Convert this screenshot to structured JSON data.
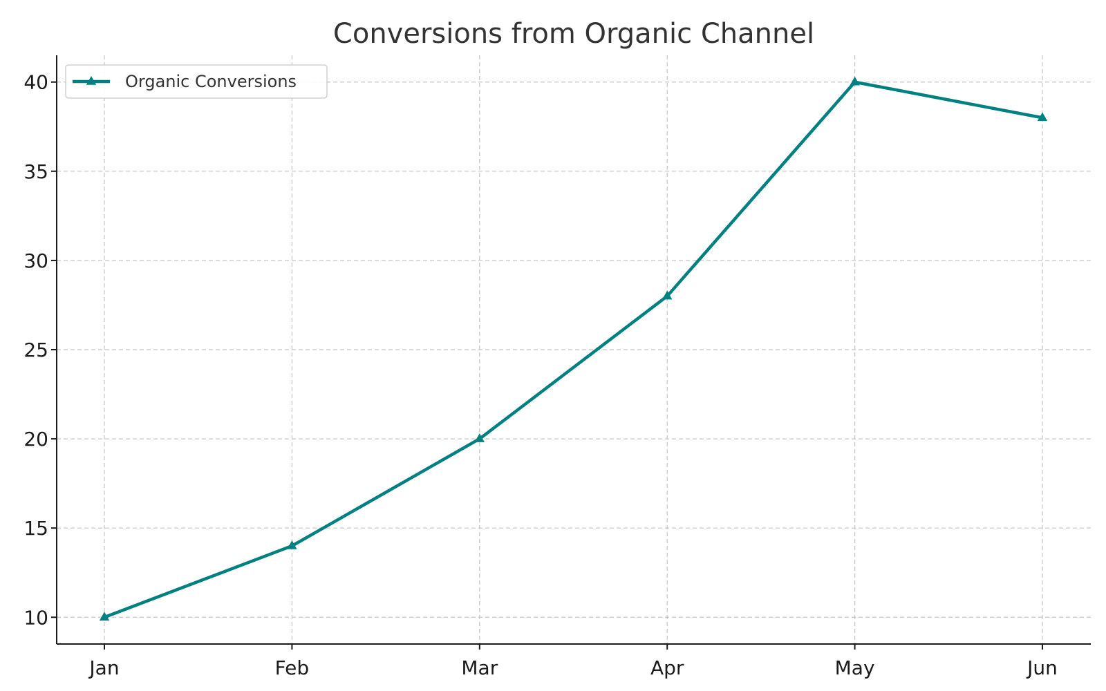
{
  "chart_data": {
    "type": "line",
    "title": "Conversions from Organic Channel",
    "xlabel": "",
    "ylabel": "",
    "categories": [
      "Jan",
      "Feb",
      "Mar",
      "Apr",
      "May",
      "Jun"
    ],
    "series": [
      {
        "name": "Organic Conversions",
        "values": [
          10,
          14,
          20,
          28,
          40,
          38
        ],
        "color": "#008080",
        "marker": "triangle-up"
      }
    ],
    "ylim": [
      8.5,
      41.5
    ],
    "yticks": [
      10,
      15,
      20,
      25,
      30,
      35,
      40
    ],
    "grid": true,
    "legend_position": "top-left"
  }
}
